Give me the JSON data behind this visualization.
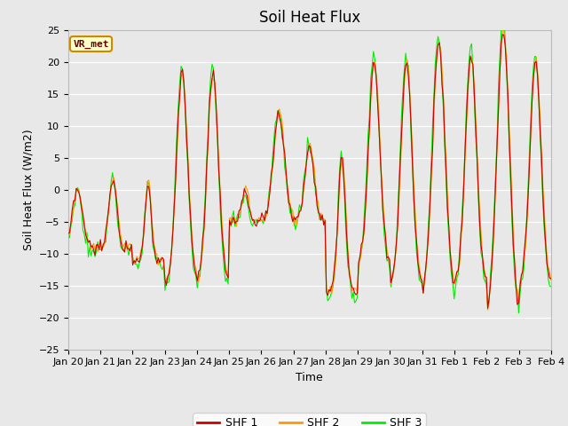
{
  "title": "Soil Heat Flux",
  "xlabel": "Time",
  "ylabel": "Soil Heat Flux (W/m2)",
  "ylim": [
    -25,
    25
  ],
  "yticks": [
    -25,
    -20,
    -15,
    -10,
    -5,
    0,
    5,
    10,
    15,
    20,
    25
  ],
  "line_colors": {
    "SHF 1": "#cc0000",
    "SHF 2": "#ff9900",
    "SHF 3": "#00ee00"
  },
  "background_color": "#e8e8e8",
  "grid_color": "#ffffff",
  "legend_text": "VR_met",
  "legend_box_facecolor": "#ffffc8",
  "legend_box_edgecolor": "#cc8800",
  "legend_text_color": "#660000",
  "xtick_labels": [
    "Jan 20",
    "Jan 21",
    "Jan 22",
    "Jan 23",
    "Jan 24",
    "Jan 25",
    "Jan 26",
    "Jan 27",
    "Jan 28",
    "Jan 29",
    "Jan 30",
    "Jan 31",
    "Feb 1",
    "Feb 2",
    "Feb 3",
    "Feb 4"
  ],
  "title_fontsize": 12,
  "label_fontsize": 9,
  "tick_fontsize": 8,
  "figsize": [
    6.4,
    4.8
  ],
  "dpi": 100
}
